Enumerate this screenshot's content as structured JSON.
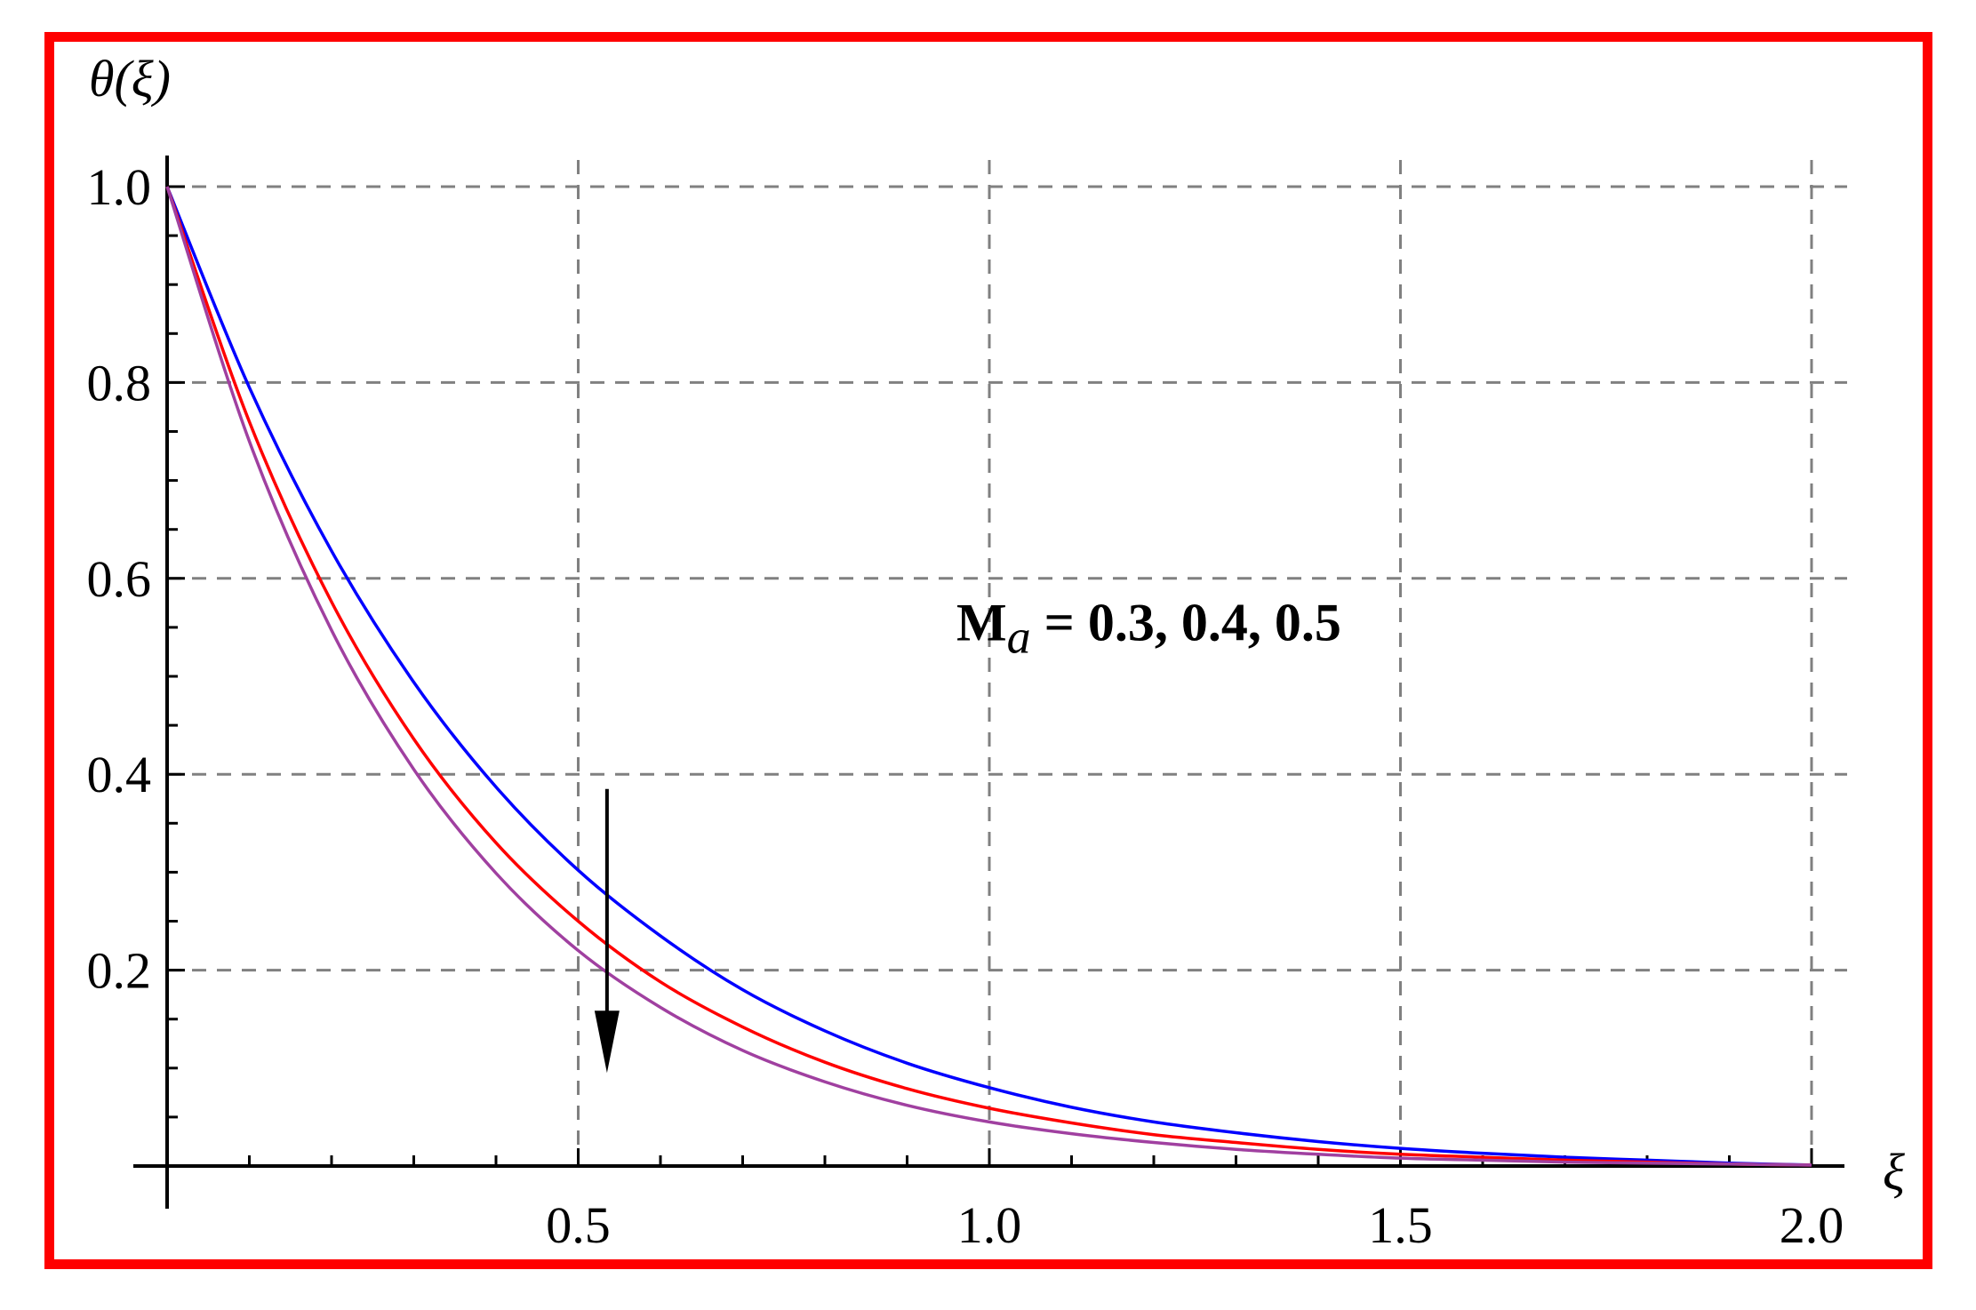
{
  "chart_data": {
    "type": "line",
    "title": "",
    "xlabel": "ξ",
    "ylabel": "θ(ξ)",
    "xlim": [
      0,
      2.0
    ],
    "ylim": [
      0,
      1.0
    ],
    "x_ticks": [
      "0.5",
      "1.0",
      "1.5",
      "2.0"
    ],
    "x_tick_values": [
      0.5,
      1.0,
      1.5,
      2.0
    ],
    "y_ticks": [
      "0.2",
      "0.4",
      "0.6",
      "0.8",
      "1.0"
    ],
    "y_tick_values": [
      0.2,
      0.4,
      0.6,
      0.8,
      1.0
    ],
    "grid": true,
    "legend": "none",
    "annotation": {
      "text_main": "M",
      "text_sub": "a",
      "text_rest": " = 0.3,  0.4,  0.5",
      "x": 0.96,
      "y": 0.555
    },
    "arrow": {
      "x": 0.535,
      "y_from": 0.385,
      "y_to": 0.095
    },
    "x": [
      0,
      0.1,
      0.2,
      0.3,
      0.4,
      0.5,
      0.6,
      0.7,
      0.8,
      0.9,
      1.0,
      1.1,
      1.2,
      1.3,
      1.4,
      1.5,
      1.6,
      1.7,
      1.8,
      1.9,
      2.0
    ],
    "series": [
      {
        "color": "#0000ff",
        "values": [
          1.0,
          0.795,
          0.628,
          0.494,
          0.387,
          0.302,
          0.235,
          0.18,
          0.138,
          0.105,
          0.08,
          0.06,
          0.045,
          0.034,
          0.025,
          0.018,
          0.013,
          0.009,
          0.006,
          0.003,
          0.001
        ]
      },
      {
        "color": "#ff0000",
        "values": [
          1.0,
          0.76,
          0.576,
          0.436,
          0.33,
          0.25,
          0.188,
          0.142,
          0.106,
          0.079,
          0.059,
          0.044,
          0.032,
          0.024,
          0.017,
          0.012,
          0.009,
          0.006,
          0.004,
          0.002,
          0.001
        ]
      },
      {
        "color": "#a040a0",
        "values": [
          1.0,
          0.74,
          0.547,
          0.405,
          0.299,
          0.22,
          0.162,
          0.118,
          0.086,
          0.062,
          0.045,
          0.033,
          0.024,
          0.017,
          0.012,
          0.008,
          0.006,
          0.004,
          0.003,
          0.002,
          0.001
        ]
      }
    ]
  },
  "colors": {
    "frame": "#ff0000",
    "grid": "#808080",
    "axis": "#000000",
    "arrow": "#000000"
  }
}
